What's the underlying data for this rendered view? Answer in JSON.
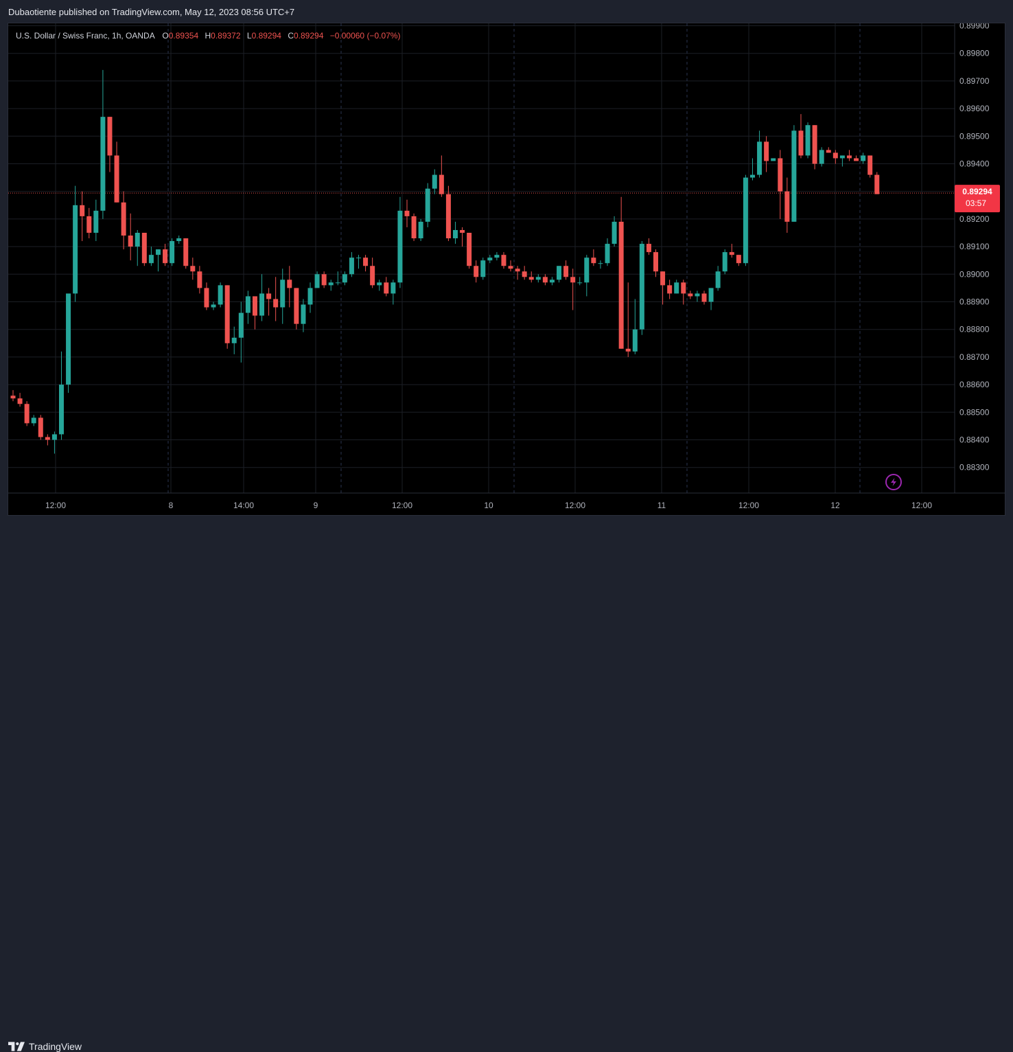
{
  "header": {
    "publisher_line": "Dubaotiente published on TradingView.com, May 12, 2023 08:56 UTC+7"
  },
  "footer": {
    "brand": "TradingView"
  },
  "legend": {
    "symbol": "U.S. Dollar / Swiss Franc, 1h, OANDA",
    "o_label": "O",
    "o_value": "0.89354",
    "h_label": "H",
    "h_value": "0.89372",
    "l_label": "L",
    "l_value": "0.89294",
    "c_label": "C",
    "c_value": "0.89294",
    "change": "−0.00060 (−0.07%)"
  },
  "price_tag": {
    "value": "0.89294",
    "countdown": "03:57"
  },
  "colors": {
    "up": "#26a69a",
    "down": "#ef5350",
    "background": "#000000",
    "grid": "#1c1f26",
    "axis_text": "#b2b5be",
    "accent_icon": "#9c27b0"
  },
  "icons": {
    "bottom_right": "lightning-bolt-icon",
    "brand": "tradingview-logo-icon"
  },
  "chart_data": {
    "type": "candlestick",
    "ylim": [
      0.8822,
      0.899
    ],
    "y_ticks": [
      0.899,
      0.898,
      0.897,
      0.896,
      0.895,
      0.894,
      0.893,
      0.892,
      0.891,
      0.89,
      0.889,
      0.888,
      0.887,
      0.886,
      0.885,
      0.884,
      0.883
    ],
    "y_tick_labels": [
      "0.89900",
      "0.89800",
      "0.89700",
      "0.89600",
      "0.89500",
      "0.89400",
      "0.89300",
      "0.89200",
      "0.89100",
      "0.89000",
      "0.88900",
      "0.88800",
      "0.88700",
      "0.88600",
      "0.88500",
      "0.88400",
      "0.88300"
    ],
    "x_tick_labels": [
      "12:00",
      "8",
      "14:00",
      "9",
      "12:00",
      "10",
      "12:00",
      "11",
      "12:00",
      "12",
      "12:00"
    ],
    "last_price": 0.89294,
    "candles": [
      [
        0.8856,
        0.8858,
        0.8854,
        0.8855
      ],
      [
        0.8855,
        0.8857,
        0.8852,
        0.8853
      ],
      [
        0.8853,
        0.8854,
        0.8845,
        0.8846
      ],
      [
        0.8846,
        0.8849,
        0.8845,
        0.8848
      ],
      [
        0.8848,
        0.8849,
        0.884,
        0.8841
      ],
      [
        0.8841,
        0.8842,
        0.8838,
        0.884
      ],
      [
        0.884,
        0.8843,
        0.8835,
        0.8842
      ],
      [
        0.8842,
        0.8872,
        0.884,
        0.886
      ],
      [
        0.886,
        0.8893,
        0.8857,
        0.8893
      ],
      [
        0.8893,
        0.8932,
        0.889,
        0.8925
      ],
      [
        0.8925,
        0.893,
        0.8912,
        0.8921
      ],
      [
        0.8921,
        0.8924,
        0.8913,
        0.8915
      ],
      [
        0.8915,
        0.8927,
        0.8912,
        0.8923
      ],
      [
        0.8923,
        0.8974,
        0.892,
        0.8957
      ],
      [
        0.8957,
        0.8957,
        0.8937,
        0.8943
      ],
      [
        0.8943,
        0.8948,
        0.8926,
        0.8926
      ],
      [
        0.8926,
        0.893,
        0.8909,
        0.8914
      ],
      [
        0.8914,
        0.8922,
        0.8905,
        0.891
      ],
      [
        0.891,
        0.8916,
        0.8903,
        0.8915
      ],
      [
        0.8915,
        0.8915,
        0.8903,
        0.8904
      ],
      [
        0.8904,
        0.891,
        0.8903,
        0.8907
      ],
      [
        0.8907,
        0.8909,
        0.8901,
        0.8909
      ],
      [
        0.8909,
        0.8911,
        0.8903,
        0.8904
      ],
      [
        0.8904,
        0.8913,
        0.8903,
        0.8912
      ],
      [
        0.8912,
        0.8914,
        0.8911,
        0.8913
      ],
      [
        0.8913,
        0.8913,
        0.8902,
        0.8903
      ],
      [
        0.8903,
        0.8906,
        0.8898,
        0.8901
      ],
      [
        0.8901,
        0.8903,
        0.8893,
        0.8895
      ],
      [
        0.8895,
        0.8897,
        0.8887,
        0.8888
      ],
      [
        0.8888,
        0.889,
        0.8887,
        0.8889
      ],
      [
        0.8889,
        0.8897,
        0.8888,
        0.8896
      ],
      [
        0.8896,
        0.8896,
        0.8873,
        0.8875
      ],
      [
        0.8875,
        0.8881,
        0.8871,
        0.8877
      ],
      [
        0.8877,
        0.889,
        0.8868,
        0.8886
      ],
      [
        0.8886,
        0.8894,
        0.8882,
        0.8892
      ],
      [
        0.8892,
        0.8892,
        0.888,
        0.8885
      ],
      [
        0.8885,
        0.89,
        0.8883,
        0.8893
      ],
      [
        0.8893,
        0.8895,
        0.8885,
        0.8891
      ],
      [
        0.8891,
        0.8899,
        0.8883,
        0.8888
      ],
      [
        0.8888,
        0.8902,
        0.8882,
        0.8898
      ],
      [
        0.8898,
        0.8903,
        0.8888,
        0.8895
      ],
      [
        0.8895,
        0.8895,
        0.888,
        0.8882
      ],
      [
        0.8882,
        0.8891,
        0.8879,
        0.8889
      ],
      [
        0.8889,
        0.8897,
        0.8886,
        0.8895
      ],
      [
        0.8895,
        0.8901,
        0.8895,
        0.89
      ],
      [
        0.89,
        0.8901,
        0.8895,
        0.8896
      ],
      [
        0.8896,
        0.8898,
        0.8894,
        0.8897
      ],
      [
        0.8897,
        0.8901,
        0.8896,
        0.8897
      ],
      [
        0.8897,
        0.8901,
        0.8896,
        0.89
      ],
      [
        0.89,
        0.8908,
        0.8899,
        0.8906
      ],
      [
        0.8906,
        0.8907,
        0.8902,
        0.8906
      ],
      [
        0.8906,
        0.8907,
        0.8901,
        0.8903
      ],
      [
        0.8903,
        0.8906,
        0.8895,
        0.8896
      ],
      [
        0.8896,
        0.8898,
        0.8894,
        0.8897
      ],
      [
        0.8897,
        0.8899,
        0.8892,
        0.8893
      ],
      [
        0.8893,
        0.8898,
        0.8889,
        0.8897
      ],
      [
        0.8897,
        0.8928,
        0.8895,
        0.8923
      ],
      [
        0.8923,
        0.8927,
        0.8917,
        0.8921
      ],
      [
        0.8921,
        0.8922,
        0.8912,
        0.8913
      ],
      [
        0.8913,
        0.892,
        0.8912,
        0.8919
      ],
      [
        0.8919,
        0.8933,
        0.8917,
        0.8931
      ],
      [
        0.8931,
        0.8938,
        0.8929,
        0.8936
      ],
      [
        0.8936,
        0.8943,
        0.8928,
        0.8929
      ],
      [
        0.8929,
        0.8932,
        0.8912,
        0.8913
      ],
      [
        0.8913,
        0.8919,
        0.8911,
        0.8916
      ],
      [
        0.8916,
        0.8917,
        0.891,
        0.8915
      ],
      [
        0.8915,
        0.8915,
        0.8902,
        0.8903
      ],
      [
        0.8903,
        0.8905,
        0.8897,
        0.8899
      ],
      [
        0.8899,
        0.8906,
        0.8898,
        0.8905
      ],
      [
        0.8905,
        0.8907,
        0.8904,
        0.8906
      ],
      [
        0.8906,
        0.8908,
        0.8905,
        0.8907
      ],
      [
        0.8907,
        0.8908,
        0.8902,
        0.8903
      ],
      [
        0.8903,
        0.8905,
        0.8901,
        0.8902
      ],
      [
        0.8902,
        0.8903,
        0.8898,
        0.8901
      ],
      [
        0.8901,
        0.8903,
        0.8898,
        0.8899
      ],
      [
        0.8899,
        0.8901,
        0.8897,
        0.8898
      ],
      [
        0.8898,
        0.89,
        0.8897,
        0.8899
      ],
      [
        0.8899,
        0.89,
        0.8896,
        0.8897
      ],
      [
        0.8897,
        0.8899,
        0.8896,
        0.8898
      ],
      [
        0.8898,
        0.8903,
        0.8897,
        0.8903
      ],
      [
        0.8903,
        0.8905,
        0.8898,
        0.8899
      ],
      [
        0.8899,
        0.8902,
        0.8887,
        0.8897
      ],
      [
        0.8897,
        0.8899,
        0.8896,
        0.8897
      ],
      [
        0.8897,
        0.8907,
        0.8892,
        0.8906
      ],
      [
        0.8906,
        0.8909,
        0.8903,
        0.8904
      ],
      [
        0.8904,
        0.8905,
        0.8902,
        0.8904
      ],
      [
        0.8904,
        0.8913,
        0.8903,
        0.8911
      ],
      [
        0.8911,
        0.8921,
        0.891,
        0.8919
      ],
      [
        0.8919,
        0.8928,
        0.8873,
        0.8873
      ],
      [
        0.8873,
        0.8897,
        0.887,
        0.8872
      ],
      [
        0.8872,
        0.8891,
        0.8871,
        0.888
      ],
      [
        0.888,
        0.8912,
        0.8878,
        0.8911
      ],
      [
        0.8911,
        0.8913,
        0.8907,
        0.8908
      ],
      [
        0.8908,
        0.8909,
        0.8899,
        0.8901
      ],
      [
        0.8901,
        0.8901,
        0.8889,
        0.8896
      ],
      [
        0.8896,
        0.8898,
        0.8891,
        0.8893
      ],
      [
        0.8893,
        0.8898,
        0.8893,
        0.8897
      ],
      [
        0.8897,
        0.8898,
        0.8889,
        0.8893
      ],
      [
        0.8893,
        0.8894,
        0.8891,
        0.8892
      ],
      [
        0.8892,
        0.8894,
        0.889,
        0.8893
      ],
      [
        0.8893,
        0.8894,
        0.8889,
        0.889
      ],
      [
        0.889,
        0.8895,
        0.8887,
        0.8895
      ],
      [
        0.8895,
        0.8903,
        0.8894,
        0.8901
      ],
      [
        0.8901,
        0.8909,
        0.89,
        0.8908
      ],
      [
        0.8908,
        0.8911,
        0.8906,
        0.8907
      ],
      [
        0.8907,
        0.8907,
        0.8903,
        0.8904
      ],
      [
        0.8904,
        0.8936,
        0.8903,
        0.8935
      ],
      [
        0.8935,
        0.8942,
        0.8934,
        0.8936
      ],
      [
        0.8936,
        0.8952,
        0.8935,
        0.8948
      ],
      [
        0.8948,
        0.895,
        0.8937,
        0.8941
      ],
      [
        0.8941,
        0.8942,
        0.8941,
        0.8942
      ],
      [
        0.8942,
        0.8945,
        0.892,
        0.893
      ],
      [
        0.893,
        0.8935,
        0.8915,
        0.8919
      ],
      [
        0.8919,
        0.8954,
        0.8919,
        0.8952
      ],
      [
        0.8952,
        0.8958,
        0.8942,
        0.8943
      ],
      [
        0.8943,
        0.8955,
        0.8942,
        0.8954
      ],
      [
        0.8954,
        0.8954,
        0.8938,
        0.894
      ],
      [
        0.894,
        0.8946,
        0.8939,
        0.8945
      ],
      [
        0.8945,
        0.8946,
        0.8944,
        0.8944
      ],
      [
        0.8944,
        0.8945,
        0.894,
        0.8942
      ],
      [
        0.8942,
        0.8943,
        0.8939,
        0.8943
      ],
      [
        0.8943,
        0.8945,
        0.8941,
        0.8942
      ],
      [
        0.8942,
        0.8943,
        0.8941,
        0.8941
      ],
      [
        0.8941,
        0.8944,
        0.894,
        0.8943
      ],
      [
        0.8943,
        0.8943,
        0.8935,
        0.8936
      ],
      [
        0.8936,
        0.8937,
        0.8929,
        0.8929
      ]
    ]
  }
}
